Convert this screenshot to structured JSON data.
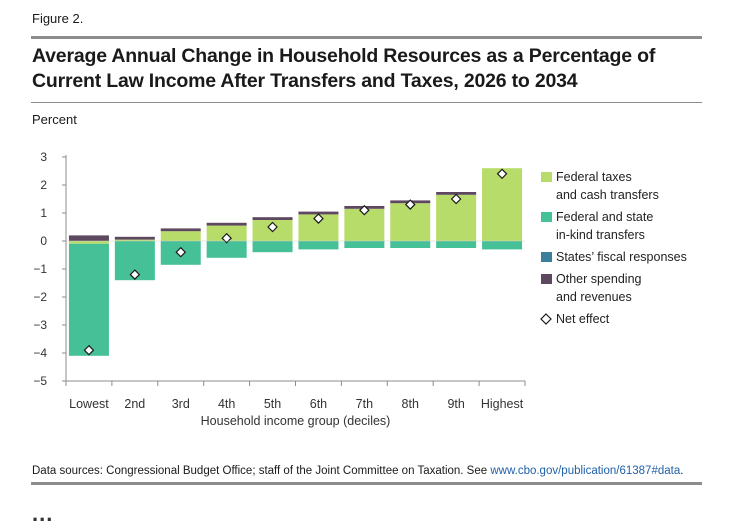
{
  "figure_label": "Figure 2.",
  "title": "Average Annual Change in Household Resources as a Percentage of Current Law Income After Transfers and Taxes, 2026 to 2034",
  "source": {
    "prefix": "Data sources: Congressional Budget Office; staff of the Joint Committee on Taxation. See ",
    "link_text": "www.cbo.gov/publication/61387#data",
    "suffix": "."
  },
  "cut_text": "...",
  "colors": {
    "federal_taxes": "#b8dc6a",
    "federal_state_inkind": "#45c097",
    "states_fiscal": "#3a7f9b",
    "other_spending": "#5d4860",
    "axis": "#8c8c8c",
    "rule": "#8c8c8c",
    "link": "#1f5fa8"
  },
  "chart_data": {
    "type": "bar",
    "stacked": true,
    "title": "Average Annual Change in Household Resources as a Percentage of Current Law Income After Transfers and Taxes, 2026 to 2034",
    "ylabel": "Percent",
    "xlabel": "Household income group (deciles)",
    "ylim": [
      -5,
      3
    ],
    "yticks": [
      3,
      2,
      1,
      0,
      -1,
      -2,
      -3,
      -4,
      -5
    ],
    "ytick_labels": [
      "3",
      "2",
      "1",
      "0",
      "−1",
      "−2",
      "−3",
      "−4",
      "−5"
    ],
    "categories": [
      "Lowest",
      "2nd",
      "3rd",
      "4th",
      "5th",
      "6th",
      "7th",
      "8th",
      "9th",
      "Highest"
    ],
    "series": [
      {
        "name": "Federal taxes and cash transfers",
        "label_lines": [
          "Federal taxes",
          "and cash transfers"
        ],
        "color_key": "federal_taxes",
        "values": [
          -0.1,
          0.05,
          0.35,
          0.55,
          0.75,
          0.95,
          1.15,
          1.35,
          1.65,
          2.6
        ]
      },
      {
        "name": "Federal and state in-kind transfers",
        "label_lines": [
          "Federal and state",
          "in-kind transfers"
        ],
        "color_key": "federal_state_inkind",
        "values": [
          -4.0,
          -1.4,
          -0.85,
          -0.6,
          -0.4,
          -0.3,
          -0.25,
          -0.25,
          -0.25,
          -0.3
        ]
      },
      {
        "name": "States' fiscal responses",
        "label_lines": [
          "States’ fiscal responses"
        ],
        "color_key": "states_fiscal",
        "values": [
          0.0,
          0.0,
          0.0,
          0.0,
          0.0,
          0.0,
          0.0,
          0.0,
          0.0,
          0.0
        ]
      },
      {
        "name": "Other spending and revenues",
        "label_lines": [
          "Other spending",
          "and revenues"
        ],
        "color_key": "other_spending",
        "values": [
          0.2,
          0.1,
          0.1,
          0.1,
          0.1,
          0.1,
          0.1,
          0.1,
          0.1,
          0.0
        ]
      }
    ],
    "net_effect": {
      "name": "Net effect",
      "label_lines": [
        "Net effect"
      ],
      "values": [
        -3.9,
        -1.2,
        -0.4,
        0.1,
        0.5,
        0.8,
        1.1,
        1.3,
        1.5,
        2.4
      ]
    },
    "legend_position": "right",
    "grid": false
  }
}
